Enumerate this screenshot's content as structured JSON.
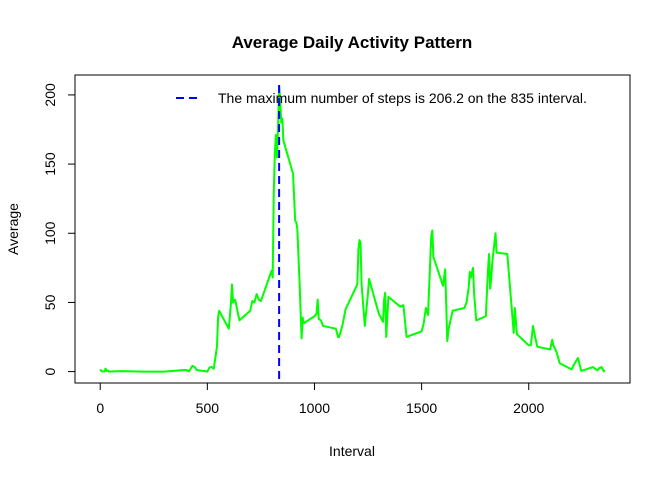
{
  "chart_data": {
    "type": "line",
    "title": "Average Daily Activity Pattern",
    "x_label": "Interval",
    "y_label": "Average",
    "x": [
      0,
      5,
      10,
      15,
      20,
      25,
      30,
      35,
      40,
      100,
      200,
      300,
      400,
      405,
      415,
      430,
      440,
      450,
      500,
      510,
      520,
      530,
      545,
      550,
      555,
      600,
      610,
      615,
      620,
      630,
      640,
      650,
      700,
      710,
      720,
      730,
      740,
      750,
      800,
      805,
      810,
      815,
      820,
      825,
      830,
      835,
      840,
      845,
      850,
      855,
      900,
      910,
      915,
      920,
      930,
      940,
      945,
      950,
      1000,
      1010,
      1015,
      1020,
      1030,
      1040,
      1100,
      1110,
      1115,
      1130,
      1145,
      1200,
      1205,
      1210,
      1215,
      1220,
      1235,
      1250,
      1255,
      1300,
      1320,
      1325,
      1330,
      1335,
      1345,
      1400,
      1415,
      1430,
      1445,
      1500,
      1510,
      1520,
      1530,
      1545,
      1550,
      1555,
      1600,
      1610,
      1620,
      1625,
      1645,
      1700,
      1710,
      1720,
      1725,
      1730,
      1740,
      1745,
      1755,
      1800,
      1810,
      1815,
      1820,
      1825,
      1830,
      1845,
      1850,
      1900,
      1930,
      1935,
      1945,
      2000,
      2010,
      2020,
      2030,
      2040,
      2100,
      2110,
      2115,
      2130,
      2145,
      2200,
      2210,
      2225,
      2230,
      2245,
      2300,
      2320,
      2330,
      2340,
      2350,
      2355
    ],
    "series": [
      {
        "name": "Average",
        "color": "#00ff00",
        "values": [
          1.7,
          0.3,
          0.1,
          0.2,
          0.1,
          2.1,
          0.5,
          0.9,
          0,
          0.3,
          0,
          0,
          1.2,
          0.9,
          0.2,
          4.1,
          3.5,
          1.2,
          0,
          3,
          3.3,
          2.1,
          18,
          39,
          44,
          31,
          49,
          63,
          50,
          52,
          44,
          37,
          44,
          51,
          50,
          56,
          52,
          51,
          73,
          68,
          129,
          158,
          171,
          155,
          177,
          206.2,
          196,
          180,
          183,
          167,
          143,
          109,
          108,
          103,
          66,
          24,
          39,
          35,
          40,
          42,
          52,
          38,
          37,
          33,
          31,
          25,
          25,
          33,
          45,
          63,
          88,
          95,
          93,
          63,
          33,
          57,
          67,
          42,
          36,
          52,
          57,
          25,
          54,
          47,
          48,
          25,
          26,
          29,
          35,
          46,
          41,
          98,
          102,
          83,
          62,
          74,
          22,
          30,
          44,
          46,
          50,
          61,
          72,
          68,
          75,
          57,
          37,
          40,
          74,
          85,
          60,
          67,
          79,
          100,
          86,
          85,
          28,
          46,
          27,
          19,
          19,
          33,
          25,
          18,
          16,
          23,
          19,
          14,
          6,
          1.6,
          4.6,
          8.7,
          9.8,
          0.5,
          3.3,
          0.9,
          2.6,
          3.3,
          0.2,
          1.1
        ]
      }
    ],
    "vline": {
      "x": 835,
      "color": "#0000ff",
      "label": "The maximum number of steps is 206.2 on the 835 interval."
    },
    "xlim": [
      -117.75,
      2472.75
    ],
    "ylim": [
      -8.25,
      214.4
    ],
    "xticks": [
      0,
      500,
      1000,
      1500,
      2000
    ],
    "yticks": [
      0,
      50,
      100,
      150,
      200
    ]
  }
}
